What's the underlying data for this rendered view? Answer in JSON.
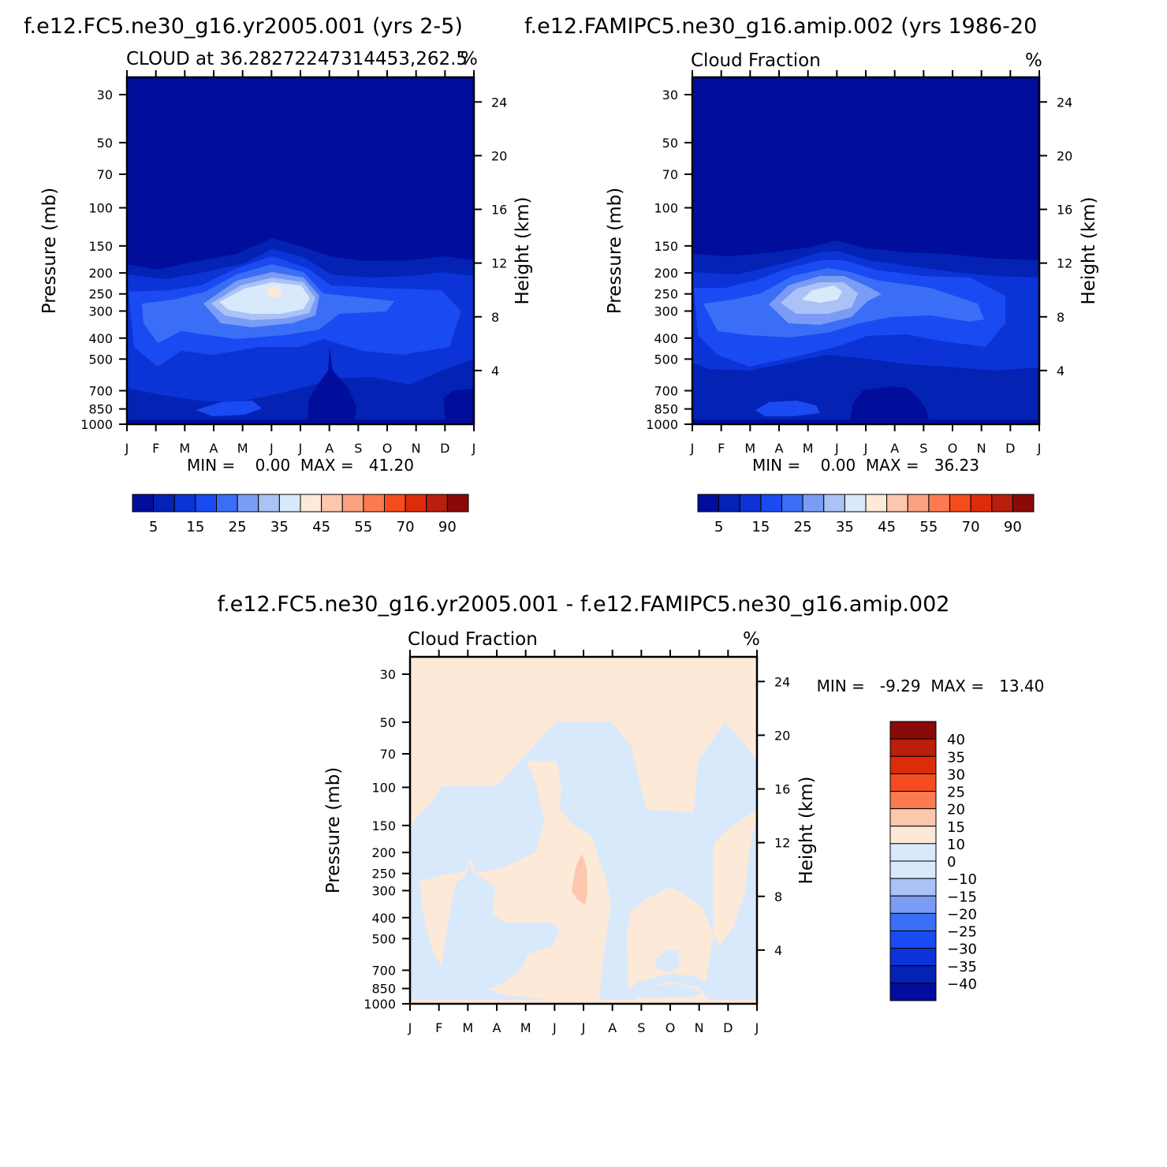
{
  "panels": [
    {
      "title": "f.e12.FC5.ne30_g16.yr2005.001 (yrs 2-5)",
      "left_label": "CLOUD at 36.28272247314453,262.5",
      "right_label": "%",
      "ylabel": "Pressure (mb)",
      "y2label": "Height (km)",
      "minmax": "MIN =    0.00  MAX =   41.20",
      "fill": "#000e9b"
    },
    {
      "title": "f.e12.FAMIPC5.ne30_g16.amip.002 (yrs 1986-20",
      "left_label": "Cloud Fraction",
      "right_label": "%",
      "ylabel": "Pressure (mb)",
      "y2label": "Height (km)",
      "minmax": "MIN =    0.00  MAX =   36.23",
      "fill": "#000e9b"
    },
    {
      "title": "f.e12.FC5.ne30_g16.yr2005.001 - f.e12.FAMIPC5.ne30_g16.amip.002",
      "left_label": "Cloud Fraction",
      "right_label": "%",
      "ylabel": "Pressure (mb)",
      "y2label": "Height (km)",
      "minmax": "MIN =   -9.29  MAX =   13.40",
      "fill": "#fde9d8"
    }
  ],
  "chart_data": [
    {
      "type": "heatmap",
      "title": "f.e12.FC5.ne30_g16.yr2005.001 (yrs 2-5)",
      "subtitle": "CLOUD at 36.28272247314453,262.5",
      "units": "%",
      "xlabel": "",
      "ylabel": "Pressure (mb)",
      "y2label": "Height (km)",
      "x_ticks": [
        "J",
        "F",
        "M",
        "A",
        "M",
        "J",
        "J",
        "A",
        "S",
        "O",
        "N",
        "D",
        "J"
      ],
      "y_ticks": [
        30,
        50,
        70,
        100,
        150,
        200,
        250,
        300,
        400,
        500,
        700,
        850,
        1000
      ],
      "y2_ticks": [
        24,
        20,
        16,
        12,
        8,
        4
      ],
      "min": 0.0,
      "max": 41.2
    },
    {
      "type": "heatmap",
      "title": "f.e12.FAMIPC5.ne30_g16.amip.002 (yrs 1986-20",
      "subtitle": "Cloud Fraction",
      "units": "%",
      "xlabel": "",
      "ylabel": "Pressure (mb)",
      "y2label": "Height (km)",
      "x_ticks": [
        "J",
        "F",
        "M",
        "A",
        "M",
        "J",
        "J",
        "A",
        "S",
        "O",
        "N",
        "D",
        "J"
      ],
      "y_ticks": [
        30,
        50,
        70,
        100,
        150,
        200,
        250,
        300,
        400,
        500,
        700,
        850,
        1000
      ],
      "y2_ticks": [
        24,
        20,
        16,
        12,
        8,
        4
      ],
      "min": 0.0,
      "max": 36.23
    },
    {
      "type": "heatmap",
      "title": "f.e12.FC5.ne30_g16.yr2005.001 - f.e12.FAMIPC5.ne30_g16.amip.002",
      "subtitle": "Cloud Fraction",
      "units": "%",
      "xlabel": "",
      "ylabel": "Pressure (mb)",
      "y2label": "Height (km)",
      "x_ticks": [
        "J",
        "F",
        "M",
        "A",
        "M",
        "J",
        "J",
        "A",
        "S",
        "O",
        "N",
        "D",
        "J"
      ],
      "y_ticks": [
        30,
        50,
        70,
        100,
        150,
        200,
        250,
        300,
        400,
        500,
        700,
        850,
        1000
      ],
      "y2_ticks": [
        24,
        20,
        16,
        12,
        8,
        4
      ],
      "min": -9.29,
      "max": 13.4
    }
  ],
  "colorbar_main": {
    "colors": [
      "#000e9b",
      "#0422b4",
      "#0b33d6",
      "#1a4af2",
      "#3a6ef6",
      "#7b9cf4",
      "#aac2f6",
      "#d8e9fb",
      "#fde9d8",
      "#fcc7ac",
      "#fba283",
      "#fb7a50",
      "#f44c1f",
      "#dd2c0c",
      "#b81f0c",
      "#8a0a0a"
    ],
    "labels": [
      "5",
      "15",
      "25",
      "35",
      "45",
      "55",
      "70",
      "90"
    ]
  },
  "colorbar_diff": {
    "colors": [
      "#000e9b",
      "#0422b4",
      "#0b33d6",
      "#1a4af2",
      "#3a6ef6",
      "#7b9cf4",
      "#aac2f6",
      "#d8e9fb",
      "#fde9d8",
      "#fcc7ac",
      "#fb7a50",
      "#f44c1f",
      "#dd2c0c",
      "#b81f0c",
      "#8a0a0a"
    ],
    "labels": [
      "40",
      "35",
      "30",
      "25",
      "20",
      "15",
      "10",
      "0",
      "−10",
      "−15",
      "−20",
      "−25",
      "−30",
      "−35",
      "−40"
    ]
  }
}
